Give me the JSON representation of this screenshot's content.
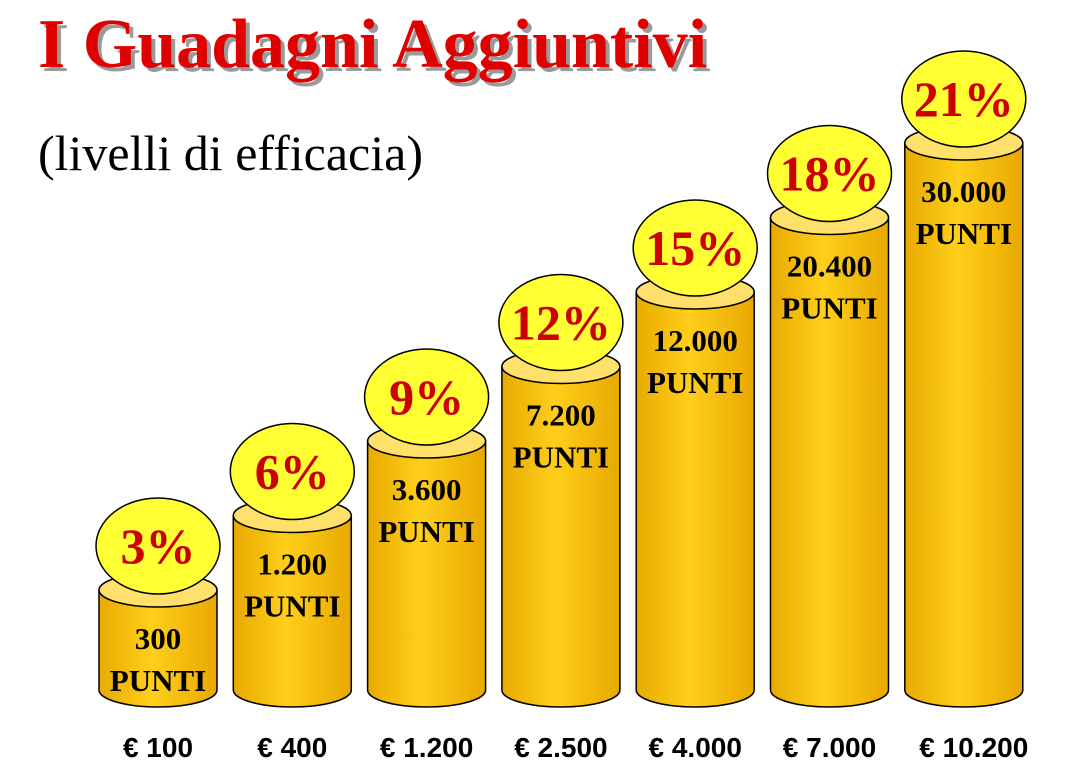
{
  "title": "I Guadagni Aggiuntivi",
  "subtitle": "(livelli di efficacia)",
  "chart_data": {
    "type": "bar",
    "title": "I Guadagni Aggiuntivi",
    "subtitle": "(livelli di efficacia)",
    "categories": [
      "€ 100",
      "€ 400",
      "€ 1.200",
      "€ 2.500",
      "€ 4.000",
      "€ 7.000",
      "€ 10.200"
    ],
    "series": [
      {
        "values": [
          3,
          6,
          9,
          12,
          15,
          18,
          21
        ],
        "labels": [
          "3%",
          "6%",
          "9%",
          "12%",
          "15%",
          "18%",
          "21%"
        ]
      }
    ],
    "bar_labels": [
      [
        "300",
        "PUNTI"
      ],
      [
        "1.200",
        "PUNTI"
      ],
      [
        "3.600",
        "PUNTI"
      ],
      [
        "7.200",
        "PUNTI"
      ],
      [
        "12.000",
        "PUNTI"
      ],
      [
        "20.400",
        "PUNTI"
      ],
      [
        "30.000",
        "PUNTI"
      ]
    ],
    "ylim": [
      0,
      21
    ],
    "grid": false,
    "legend": "none"
  },
  "colors": {
    "title": "#e00000",
    "title_shadow": "#9a9a9a",
    "cylinder_body": "#f7c400",
    "cylinder_top": "#ffe06a",
    "cylinder_outline": "#000000",
    "badge_fill": "#ffff33",
    "percent_text": "#cc0000"
  }
}
